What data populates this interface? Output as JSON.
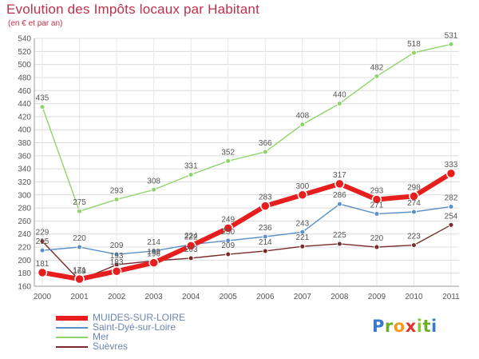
{
  "header": {
    "title": "Evolution des Impôts locaux par Habitant",
    "subtitle": "(en € et par an)"
  },
  "logo": {
    "letters": [
      "P",
      "r",
      "o",
      "x",
      "i",
      "t",
      "i"
    ],
    "colors": [
      "#3a78c9",
      "#6aae2a",
      "#f29a1e",
      "#e0342f",
      "#8cc63f",
      "#6aae2a",
      "#3a78c9"
    ]
  },
  "chart_data": {
    "type": "line",
    "title": "Evolution des Impôts locaux par Habitant",
    "subtitle": "(en € et par an)",
    "x": [
      "2000",
      "2001",
      "2002",
      "2003",
      "2004",
      "2005",
      "2006",
      "2007",
      "2008",
      "2009",
      "2010",
      "2011"
    ],
    "ylim": [
      160,
      540
    ],
    "yticks": [
      160,
      180,
      200,
      220,
      240,
      260,
      280,
      300,
      320,
      340,
      360,
      380,
      400,
      420,
      440,
      460,
      480,
      500,
      520,
      540
    ],
    "grid": true,
    "legend_position": "bottom-left",
    "series": [
      {
        "name": "MUIDES-SUR-LOIRE",
        "color": "#e61e1e",
        "values": [
          181,
          171,
          183,
          196,
          222,
          249,
          283,
          300,
          317,
          293,
          298,
          333
        ]
      },
      {
        "name": "Saint-Dyé-sur-Loire",
        "color": "#5b8fc7",
        "values": [
          215,
          220,
          209,
          214,
          224,
          230,
          236,
          243,
          286,
          271,
          274,
          282
        ]
      },
      {
        "name": "Mer",
        "color": "#8fd46a",
        "values": [
          435,
          275,
          293,
          308,
          331,
          352,
          366,
          408,
          440,
          482,
          518,
          531
        ]
      },
      {
        "name": "Suèvres",
        "color": "#7a2a2a",
        "values": [
          229,
          169,
          193,
          199,
          203,
          209,
          214,
          221,
          225,
          220,
          223,
          254
        ]
      }
    ]
  }
}
